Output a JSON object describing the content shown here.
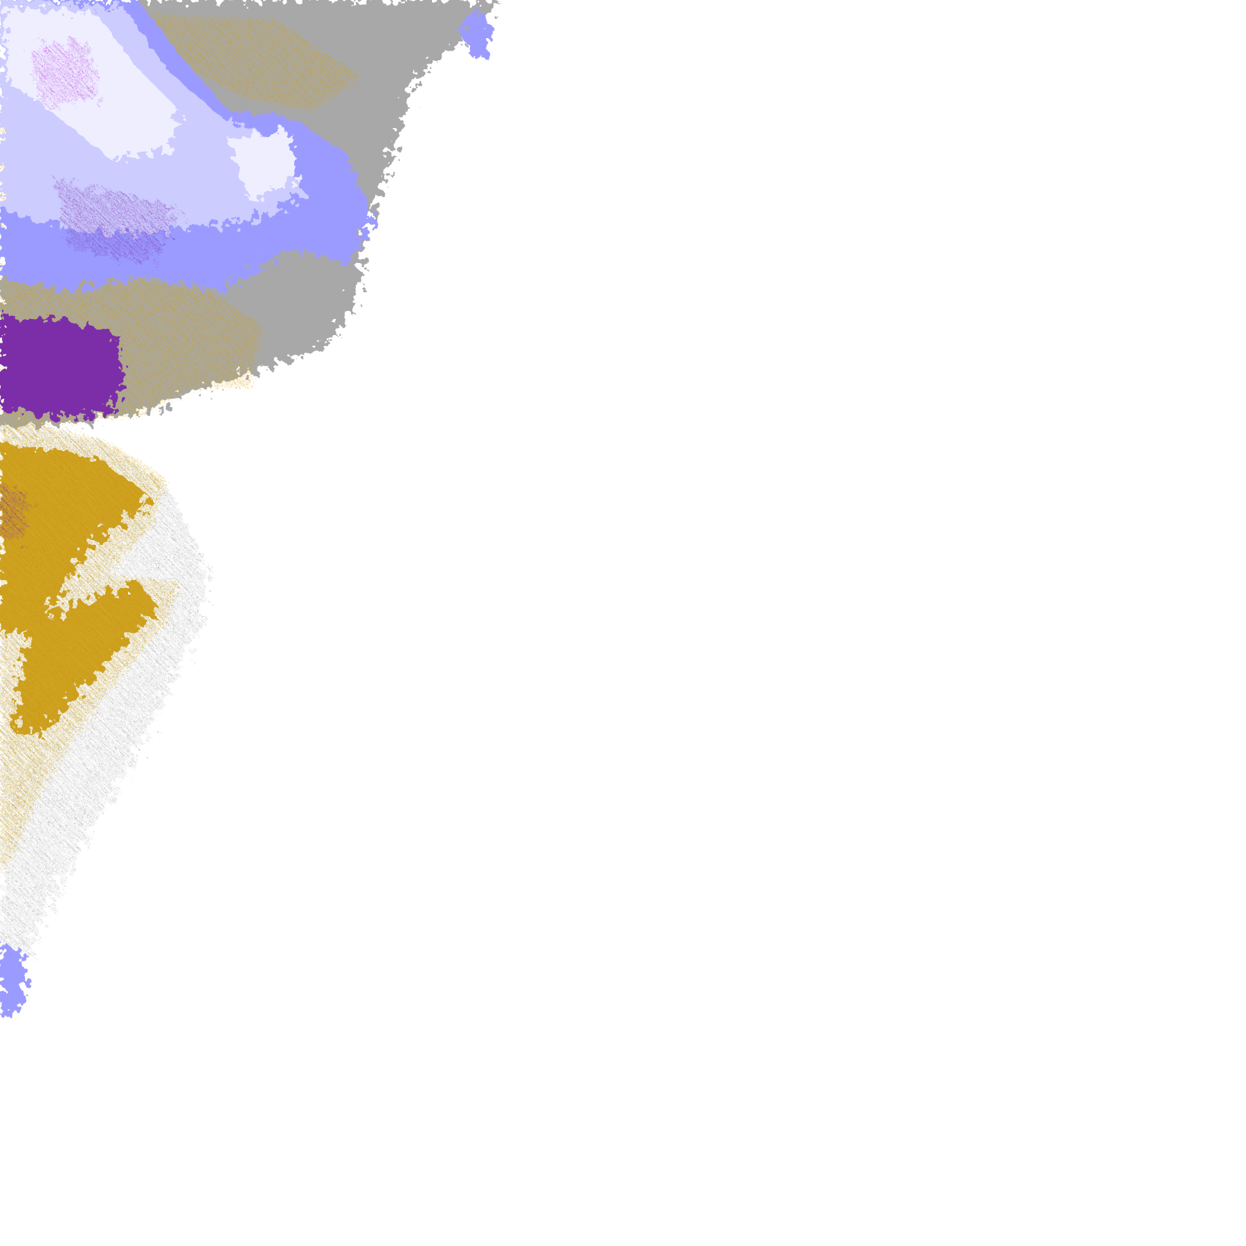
{
  "map": {
    "kind": "precipitation-radar-tile",
    "background": "#ffffff",
    "palette": {
      "light_gray": "#a8a8a8",
      "dark_gray": "#8c8c8c",
      "pale_lavender": "#eeeeff",
      "light_lavender": "#ccccff",
      "periwinkle": "#9b9bff",
      "gold": "#d4a000",
      "dark_gold": "#b88a00",
      "purple": "#7b2fa8",
      "magenta": "#c040e0"
    }
  }
}
